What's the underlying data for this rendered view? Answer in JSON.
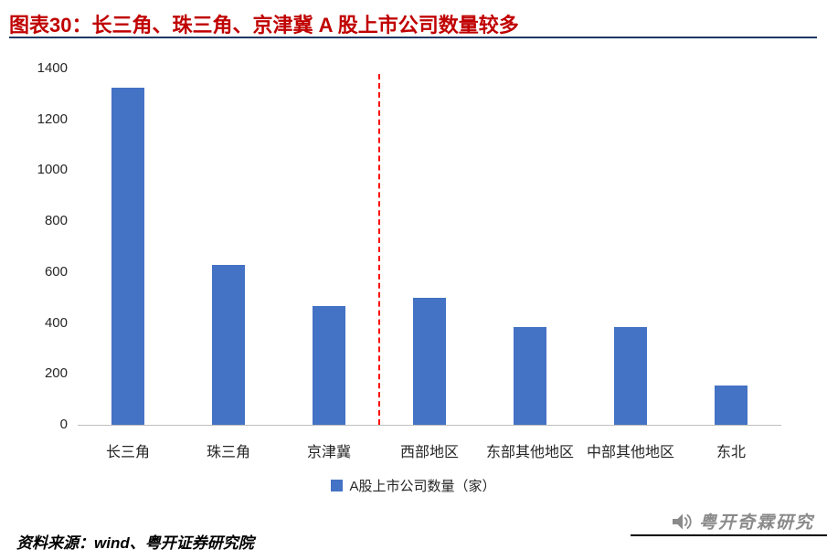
{
  "header": {
    "title": "图表30：长三角、珠三角、京津冀 A 股上市公司数量较多"
  },
  "chart_data": {
    "type": "bar",
    "title": "图表30：长三角、珠三角、京津冀 A 股上市公司数量较多",
    "categories": [
      "长三角",
      "珠三角",
      "京津冀",
      "西部地区",
      "东部其他地区",
      "中部其他地区",
      "东北"
    ],
    "values": [
      1325,
      630,
      465,
      500,
      385,
      385,
      155
    ],
    "xlabel": "",
    "ylabel": "",
    "ylim": [
      0,
      1400
    ],
    "yticks": [
      0,
      200,
      400,
      600,
      800,
      1000,
      1200,
      1400
    ],
    "grid": false,
    "bar_color": "#4472C4",
    "divider": {
      "after_category_index": 2,
      "color": "#FF0000",
      "style": "dashed"
    },
    "legend": [
      {
        "label": "A股上市公司数量（家）",
        "color": "#4472C4"
      }
    ],
    "legend_position": "bottom"
  },
  "footer": {
    "source": "资料来源：wind、粤开证券研究院",
    "watermark": "粤开奇霖研究"
  },
  "colors": {
    "title_red": "#C00000",
    "rule_navy": "#1F3864",
    "bar_blue": "#4472C4",
    "divider_red": "#FF0000",
    "watermark_gray": "#8A8A8A"
  }
}
